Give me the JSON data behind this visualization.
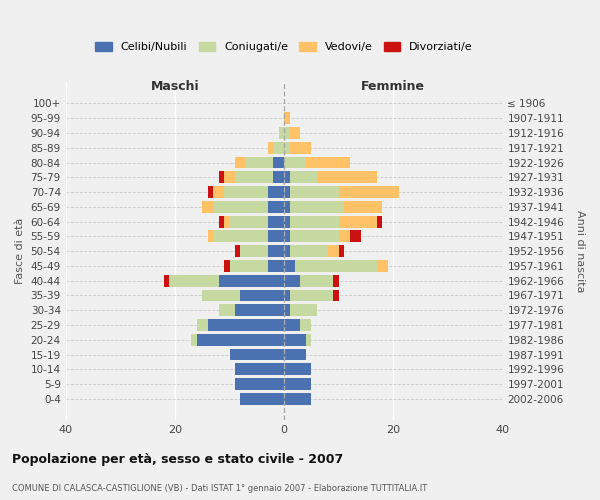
{
  "age_groups": [
    "0-4",
    "5-9",
    "10-14",
    "15-19",
    "20-24",
    "25-29",
    "30-34",
    "35-39",
    "40-44",
    "45-49",
    "50-54",
    "55-59",
    "60-64",
    "65-69",
    "70-74",
    "75-79",
    "80-84",
    "85-89",
    "90-94",
    "95-99",
    "100+"
  ],
  "birth_years": [
    "2002-2006",
    "1997-2001",
    "1992-1996",
    "1987-1991",
    "1982-1986",
    "1977-1981",
    "1972-1976",
    "1967-1971",
    "1962-1966",
    "1957-1961",
    "1952-1956",
    "1947-1951",
    "1942-1946",
    "1937-1941",
    "1932-1936",
    "1927-1931",
    "1922-1926",
    "1917-1921",
    "1912-1916",
    "1907-1911",
    "≤ 1906"
  ],
  "males": {
    "celibi": [
      8,
      9,
      9,
      10,
      16,
      14,
      9,
      8,
      12,
      3,
      3,
      3,
      3,
      3,
      3,
      2,
      2,
      0,
      0,
      0,
      0
    ],
    "coniugati": [
      0,
      0,
      0,
      0,
      1,
      2,
      3,
      7,
      9,
      7,
      5,
      10,
      7,
      10,
      8,
      7,
      5,
      2,
      1,
      0,
      0
    ],
    "vedovi": [
      0,
      0,
      0,
      0,
      0,
      0,
      0,
      0,
      0,
      0,
      0,
      1,
      1,
      2,
      2,
      2,
      2,
      1,
      0,
      0,
      0
    ],
    "divorziati": [
      0,
      0,
      0,
      0,
      0,
      0,
      0,
      0,
      1,
      1,
      1,
      0,
      1,
      0,
      1,
      1,
      0,
      0,
      0,
      0,
      0
    ]
  },
  "females": {
    "nubili": [
      5,
      5,
      5,
      4,
      4,
      3,
      1,
      1,
      3,
      2,
      1,
      1,
      1,
      1,
      1,
      1,
      0,
      0,
      0,
      0,
      0
    ],
    "coniugate": [
      0,
      0,
      0,
      0,
      1,
      2,
      5,
      8,
      6,
      15,
      7,
      9,
      9,
      10,
      9,
      5,
      4,
      1,
      1,
      0,
      0
    ],
    "vedove": [
      0,
      0,
      0,
      0,
      0,
      0,
      0,
      0,
      0,
      2,
      2,
      2,
      7,
      7,
      11,
      11,
      8,
      4,
      2,
      1,
      0
    ],
    "divorziate": [
      0,
      0,
      0,
      0,
      0,
      0,
      0,
      1,
      1,
      0,
      1,
      2,
      1,
      0,
      0,
      0,
      0,
      0,
      0,
      0,
      0
    ]
  },
  "colors": {
    "celibi": "#4a72b0",
    "coniugati": "#c5d9a0",
    "vedovi": "#ffc266",
    "divorziati": "#cc1111"
  },
  "title": "Popolazione per età, sesso e stato civile - 2007",
  "subtitle": "COMUNE DI CALASCA-CASTIGLIONE (VB) - Dati ISTAT 1° gennaio 2007 - Elaborazione TUTTITALIA.IT",
  "xlabel_left": "Maschi",
  "xlabel_right": "Femmine",
  "ylabel_left": "Fasce di età",
  "ylabel_right": "Anni di nascita",
  "xlim": 40,
  "bg_color": "#f0f0f0",
  "legend_labels": [
    "Celibi/Nubili",
    "Coniugati/e",
    "Vedovi/e",
    "Divorziati/e"
  ]
}
